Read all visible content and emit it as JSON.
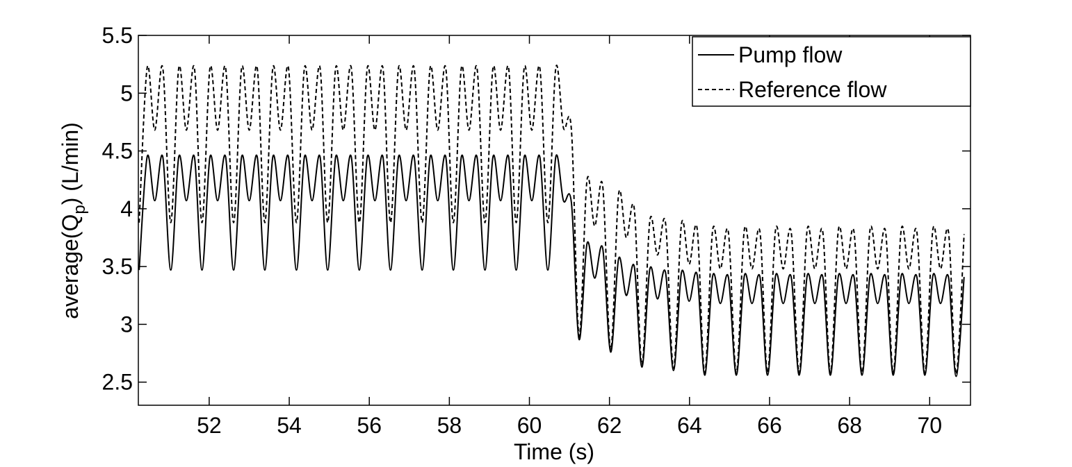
{
  "chart_data": {
    "type": "line",
    "xlabel": "Time (s)",
    "ylabel": [
      "average(Q",
      "p",
      ") (L/min)"
    ],
    "xlim": [
      50.23,
      71.02
    ],
    "ylim": [
      2.3,
      5.5
    ],
    "xticks": [
      52,
      54,
      56,
      58,
      60,
      62,
      64,
      66,
      68,
      70
    ],
    "yticks": [
      2.5,
      3,
      3.5,
      4,
      4.5,
      5,
      5.5
    ],
    "legend": "upper right",
    "x": [
      50.25,
      50.45,
      50.64,
      50.84,
      51.04,
      51.24,
      51.43,
      51.63,
      51.82,
      52.02,
      52.21,
      52.41,
      52.61,
      52.81,
      53.0,
      53.2,
      53.39,
      53.59,
      53.78,
      53.98,
      54.18,
      54.38,
      54.57,
      54.77,
      54.96,
      55.16,
      55.35,
      55.55,
      55.75,
      55.95,
      56.14,
      56.34,
      56.53,
      56.73,
      56.92,
      57.12,
      57.32,
      57.52,
      57.71,
      57.91,
      58.1,
      58.3,
      58.49,
      58.69,
      58.89,
      59.09,
      59.28,
      59.48,
      59.67,
      59.87,
      60.06,
      60.26,
      60.46,
      60.66,
      60.85,
      61.05,
      61.24,
      61.44,
      61.63,
      61.83,
      62.03,
      62.23,
      62.42,
      62.62,
      62.81,
      63.01,
      63.2,
      63.4,
      63.6,
      63.8,
      63.99,
      64.19,
      64.38,
      64.58,
      64.77,
      64.97,
      65.17,
      65.37,
      65.56,
      65.76,
      65.95,
      66.15,
      66.34,
      66.54,
      66.74,
      66.94,
      67.13,
      67.33,
      67.52,
      67.72,
      67.91,
      68.11,
      68.31,
      68.51,
      68.7,
      68.9,
      69.09,
      69.29,
      69.48,
      69.68,
      69.88,
      70.08,
      70.27,
      70.47,
      70.66,
      70.86
    ],
    "series": [
      {
        "name": "Pump flow",
        "color": "#000000",
        "dash": false,
        "values": [
          3.47,
          4.45,
          4.07,
          4.45,
          3.47,
          4.45,
          4.07,
          4.45,
          3.47,
          4.45,
          4.07,
          4.45,
          3.47,
          4.45,
          4.07,
          4.45,
          3.47,
          4.45,
          4.07,
          4.45,
          3.47,
          4.45,
          4.07,
          4.45,
          3.47,
          4.45,
          4.07,
          4.45,
          3.47,
          4.45,
          4.07,
          4.45,
          3.47,
          4.45,
          4.07,
          4.45,
          3.47,
          4.45,
          4.07,
          4.45,
          3.47,
          4.45,
          4.07,
          4.45,
          3.47,
          4.45,
          4.07,
          4.45,
          3.47,
          4.45,
          4.07,
          4.45,
          3.47,
          4.45,
          4.07,
          4.05,
          2.87,
          3.7,
          3.4,
          3.66,
          2.76,
          3.57,
          3.25,
          3.5,
          2.63,
          3.48,
          3.22,
          3.45,
          2.6,
          3.45,
          3.2,
          3.43,
          2.56,
          3.42,
          3.18,
          3.41,
          2.56,
          3.42,
          3.18,
          3.41,
          2.56,
          3.42,
          3.18,
          3.41,
          2.56,
          3.42,
          3.18,
          3.41,
          2.56,
          3.42,
          3.18,
          3.41,
          2.56,
          3.42,
          3.18,
          3.41,
          2.56,
          3.42,
          3.18,
          3.41,
          2.56,
          3.42,
          3.18,
          3.41,
          2.55,
          3.41
        ]
      },
      {
        "name": "Reference flow",
        "color": "#000000",
        "dash": true,
        "values": [
          3.88,
          5.22,
          4.68,
          5.22,
          3.88,
          5.22,
          4.68,
          5.22,
          3.88,
          5.22,
          4.68,
          5.22,
          3.88,
          5.22,
          4.68,
          5.22,
          3.88,
          5.22,
          4.68,
          5.22,
          3.88,
          5.22,
          4.68,
          5.22,
          3.88,
          5.22,
          4.68,
          5.22,
          3.88,
          5.22,
          4.68,
          5.22,
          3.88,
          5.22,
          4.68,
          5.22,
          3.88,
          5.22,
          4.68,
          5.22,
          3.88,
          5.22,
          4.68,
          5.22,
          3.88,
          5.22,
          4.68,
          5.22,
          3.88,
          5.22,
          4.68,
          5.22,
          3.88,
          5.22,
          4.7,
          4.68,
          2.9,
          4.25,
          3.85,
          4.2,
          2.78,
          4.13,
          3.75,
          4.0,
          2.65,
          3.9,
          3.6,
          3.88,
          2.62,
          3.87,
          3.52,
          3.83,
          2.58,
          3.82,
          3.48,
          3.8,
          2.58,
          3.82,
          3.48,
          3.8,
          2.58,
          3.82,
          3.48,
          3.8,
          2.58,
          3.82,
          3.48,
          3.8,
          2.58,
          3.82,
          3.48,
          3.8,
          2.58,
          3.82,
          3.48,
          3.8,
          2.58,
          3.82,
          3.48,
          3.8,
          2.58,
          3.82,
          3.48,
          3.8,
          2.57,
          3.78
        ]
      }
    ]
  }
}
